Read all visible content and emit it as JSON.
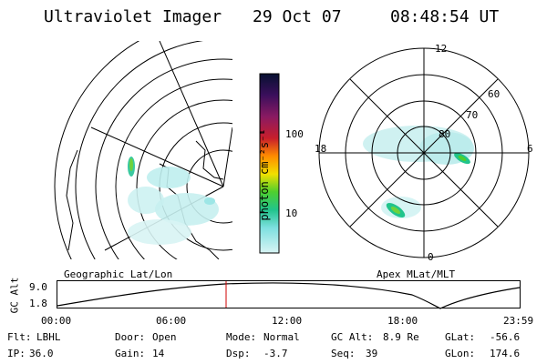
{
  "header": {
    "title": "Ultraviolet Imager",
    "date": "29 Oct 07",
    "time": "08:48:54 UT"
  },
  "colorbar": {
    "unit_label": "photon cm⁻²s⁻¹",
    "ticks": [
      {
        "label": "100",
        "value": 100
      },
      {
        "label": "10",
        "value": 10
      }
    ],
    "scale": "log",
    "colors": [
      "#061030",
      "#3b0f5c",
      "#8a1a62",
      "#c81e2b",
      "#ff8c00",
      "#f1e000",
      "#4ecf2f",
      "#21c48c",
      "#7ee0e0",
      "#d8f4f4"
    ]
  },
  "left_panel": {
    "caption": "Geographic Lat/Lon"
  },
  "right_panel": {
    "caption": "Apex MLat/MLT",
    "lat_labels": [
      "60",
      "70",
      "80"
    ],
    "mlt_labels": {
      "top": "12",
      "right": "6",
      "bottom": "0",
      "left": "18"
    }
  },
  "altitude_strip": {
    "y_label": "GC Alt",
    "y_ticks": [
      "9.0",
      "1.8"
    ],
    "x_ticks": [
      "00:00",
      "06:00",
      "12:00",
      "18:00",
      "23:59"
    ],
    "current_time_marker": "08:48"
  },
  "status": {
    "row1": [
      {
        "key": "Flt:",
        "value": "LBHL"
      },
      {
        "key": "Door:",
        "value": "Open"
      },
      {
        "key": "Mode:",
        "value": "Normal"
      },
      {
        "key": "GC Alt:",
        "value": "8.9 Re"
      },
      {
        "key": "GLat:",
        "value": "-56.6"
      }
    ],
    "row2": [
      {
        "key": "IP:",
        "value": "36.0"
      },
      {
        "key": "Gain:",
        "value": "14"
      },
      {
        "key": "Dsp:",
        "value": "-3.7"
      },
      {
        "key": "Seq:",
        "value": "39"
      },
      {
        "key": "GLon:",
        "value": "174.6"
      }
    ]
  }
}
